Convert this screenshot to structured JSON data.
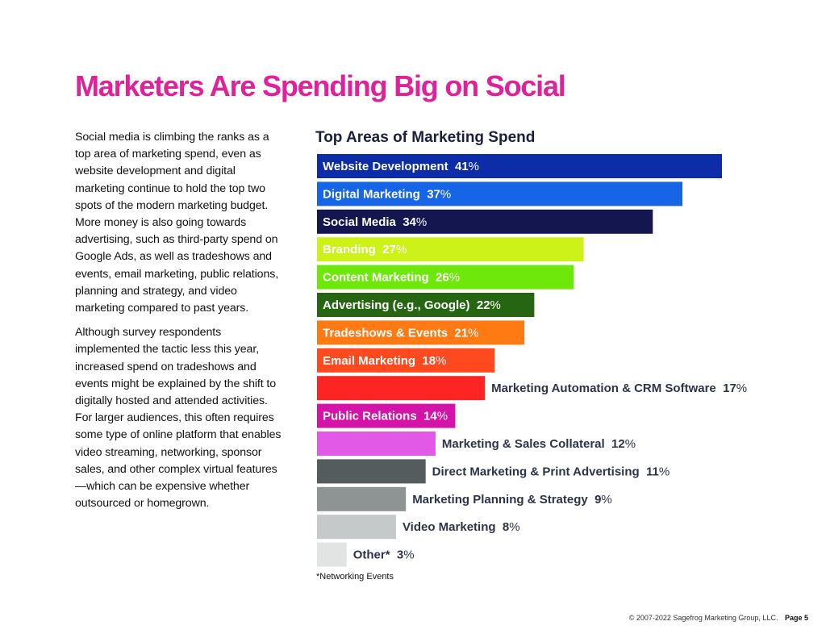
{
  "page": {
    "title": "Marketers Are Spending Big on Social",
    "title_color": "#e0229a",
    "paragraphs": [
      "Social media is climbing the ranks as a top area of marketing spend, even as website development and digital marketing continue to hold the top two spots of the modern marketing budget. More money is also going towards advertising, such as third-party spend on Google Ads, as well as tradeshows and events, email marketing, public relations, planning and strategy, and video marketing compared to past years.",
      "Although survey respondents implemented the tactic less this year, increased spend on tradeshows and events might be explained by the shift to digitally hosted and attended activities. For larger audiences, this often requires some type of online platform that enables video streaming, networking, sponsor sales, and other complex virtual features—which can be expensive whether outsourced or homegrown."
    ],
    "footnote": "*Networking Events",
    "footer_copyright": "© 2007-2022 Sagefrog Marketing Group, LLC.",
    "footer_page": "Page 5"
  },
  "chart_data": {
    "type": "bar",
    "orientation": "horizontal",
    "title": "Top Areas of Marketing Spend",
    "unit": "%",
    "xlim": [
      0,
      41
    ],
    "categories": [
      "Website Development",
      "Digital Marketing",
      "Social Media",
      "Branding",
      "Content Marketing",
      "Advertising (e.g., Google)",
      "Tradeshows & Events",
      "Email Marketing",
      "Marketing Automation & CRM Software",
      "Public Relations",
      "Marketing & Sales Collateral",
      "Direct Marketing & Print Advertising",
      "Marketing Planning & Strategy",
      "Video Marketing",
      "Other*"
    ],
    "values": [
      41,
      37,
      34,
      27,
      26,
      22,
      21,
      18,
      17,
      14,
      12,
      11,
      9,
      8,
      3
    ],
    "colors": [
      "#0d2ca8",
      "#1565e6",
      "#141650",
      "#ccf21a",
      "#6ee80a",
      "#266612",
      "#ff7a12",
      "#ff4a20",
      "#ff2424",
      "#d414a8",
      "#e259e8",
      "#545c5e",
      "#8e9394",
      "#c6c9ca",
      "#e2e4e4"
    ],
    "label_colors_inside": "#ffffff",
    "label_color_outside": "#2d3348"
  }
}
